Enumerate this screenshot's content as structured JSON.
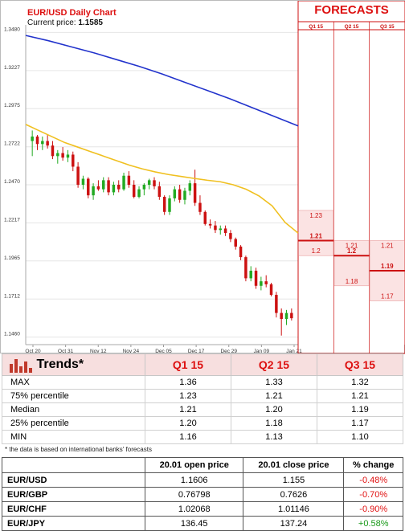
{
  "chart_data": {
    "type": "candlestick",
    "title": "EUR/USD Daily Chart",
    "current_price_label": "Current price:",
    "current_price": "1.1585",
    "y_ticks": [
      "1.3480",
      "1.3227",
      "1.2975",
      "1.2722",
      "1.2470",
      "1.2217",
      "1.1965",
      "1.1712",
      "1.1460"
    ],
    "ylim": [
      1.141,
      1.353
    ],
    "x_ticks": [
      "Oct 20",
      "Oct 31",
      "Nov 12",
      "Nov 24",
      "Dec 05",
      "Dec 17",
      "Dec 29",
      "Jan 09",
      "Jan 21"
    ],
    "candles": [
      [
        1.276,
        1.283,
        1.266,
        1.279
      ],
      [
        1.279,
        1.28,
        1.27,
        1.274
      ],
      [
        1.274,
        1.279,
        1.27,
        1.276
      ],
      [
        1.276,
        1.28,
        1.271,
        1.273
      ],
      [
        1.273,
        1.276,
        1.264,
        1.266
      ],
      [
        1.266,
        1.27,
        1.261,
        1.268
      ],
      [
        1.268,
        1.272,
        1.263,
        1.265
      ],
      [
        1.265,
        1.27,
        1.262,
        1.267
      ],
      [
        1.267,
        1.269,
        1.256,
        1.259
      ],
      [
        1.259,
        1.262,
        1.245,
        1.247
      ],
      [
        1.247,
        1.253,
        1.244,
        1.251
      ],
      [
        1.251,
        1.252,
        1.238,
        1.24
      ],
      [
        1.24,
        1.248,
        1.237,
        1.246
      ],
      [
        1.246,
        1.25,
        1.243,
        1.244
      ],
      [
        1.244,
        1.252,
        1.242,
        1.25
      ],
      [
        1.25,
        1.252,
        1.24,
        1.242
      ],
      [
        1.242,
        1.249,
        1.24,
        1.247
      ],
      [
        1.247,
        1.25,
        1.242,
        1.244
      ],
      [
        1.244,
        1.255,
        1.243,
        1.253
      ],
      [
        1.253,
        1.256,
        1.245,
        1.247
      ],
      [
        1.247,
        1.25,
        1.238,
        1.239
      ],
      [
        1.239,
        1.246,
        1.238,
        1.244
      ],
      [
        1.244,
        1.248,
        1.24,
        1.247
      ],
      [
        1.247,
        1.251,
        1.244,
        1.25
      ],
      [
        1.25,
        1.252,
        1.244,
        1.246
      ],
      [
        1.246,
        1.249,
        1.237,
        1.239
      ],
      [
        1.239,
        1.24,
        1.227,
        1.229
      ],
      [
        1.229,
        1.24,
        1.227,
        1.238
      ],
      [
        1.238,
        1.246,
        1.236,
        1.244
      ],
      [
        1.244,
        1.247,
        1.235,
        1.237
      ],
      [
        1.237,
        1.245,
        1.234,
        1.243
      ],
      [
        1.243,
        1.25,
        1.24,
        1.248
      ],
      [
        1.248,
        1.257,
        1.233,
        1.235
      ],
      [
        1.235,
        1.24,
        1.227,
        1.229
      ],
      [
        1.229,
        1.23,
        1.22,
        1.221
      ],
      [
        1.221,
        1.224,
        1.218,
        1.22
      ],
      [
        1.22,
        1.223,
        1.215,
        1.217
      ],
      [
        1.217,
        1.22,
        1.214,
        1.218
      ],
      [
        1.218,
        1.22,
        1.213,
        1.215
      ],
      [
        1.215,
        1.217,
        1.209,
        1.211
      ],
      [
        1.211,
        1.212,
        1.204,
        1.206
      ],
      [
        1.206,
        1.207,
        1.197,
        1.199
      ],
      [
        1.199,
        1.2,
        1.183,
        1.185
      ],
      [
        1.185,
        1.193,
        1.183,
        1.19
      ],
      [
        1.19,
        1.192,
        1.178,
        1.18
      ],
      [
        1.18,
        1.186,
        1.177,
        1.183
      ],
      [
        1.183,
        1.187,
        1.179,
        1.181
      ],
      [
        1.181,
        1.182,
        1.173,
        1.174
      ],
      [
        1.174,
        1.176,
        1.159,
        1.162
      ],
      [
        1.162,
        1.165,
        1.147,
        1.158
      ],
      [
        1.158,
        1.164,
        1.154,
        1.162
      ],
      [
        1.162,
        1.165,
        1.157,
        1.1585
      ]
    ],
    "ma_fast": [
      1.287,
      1.283,
      1.279,
      1.275,
      1.272,
      1.269,
      1.266,
      1.263,
      1.26,
      1.2575,
      1.2555,
      1.2538,
      1.2525,
      1.2512,
      1.25,
      1.249,
      1.247,
      1.244,
      1.2395,
      1.233,
      1.222,
      1.215
    ],
    "ma_slow": [
      1.346,
      1.3425,
      1.3385,
      1.3345,
      1.33,
      1.3255,
      1.3205,
      1.315,
      1.3095,
      1.304,
      1.298,
      1.292,
      1.286
    ],
    "forecast_columns": [
      "Q1 15",
      "Q2 15",
      "Q3 15"
    ],
    "forecasts": [
      {
        "quarter": "Q1 15",
        "p75": 1.23,
        "median": 1.21,
        "p25": 1.2,
        "p75_label": "1.23",
        "median_label": "1.21",
        "p25_label": "1.2"
      },
      {
        "quarter": "Q2 15",
        "p75": 1.21,
        "median": 1.2,
        "p25": 1.18,
        "p75_label": "1.21",
        "median_label": "1.2",
        "p25_label": "1.18"
      },
      {
        "quarter": "Q3 15",
        "p75": 1.21,
        "median": 1.19,
        "p25": 1.17,
        "p75_label": "1.21",
        "median_label": "1.19",
        "p25_label": "1.17"
      }
    ],
    "colors": {
      "up": "#22aa22",
      "down": "#cc1111",
      "ma_fast": "#f0c020",
      "ma_slow": "#2233cc",
      "forecast": "#cc1111",
      "forecast_band": "#fbe3e3"
    }
  },
  "forecasts_header": "FORECASTS",
  "trends": {
    "title": "Trends*",
    "columns": [
      "Q1 15",
      "Q2 15",
      "Q3 15"
    ],
    "rows": [
      {
        "label": "MAX",
        "values": [
          "1.36",
          "1.33",
          "1.32"
        ]
      },
      {
        "label": "75% percentile",
        "values": [
          "1.23",
          "1.21",
          "1.21"
        ]
      },
      {
        "label": "Median",
        "values": [
          "1.21",
          "1.20",
          "1.19"
        ]
      },
      {
        "label": "25% percentile",
        "values": [
          "1.20",
          "1.18",
          "1.17"
        ]
      },
      {
        "label": "MIN",
        "values": [
          "1.16",
          "1.13",
          "1.10"
        ]
      }
    ],
    "footnote": "* the data is based on international banks' forecasts"
  },
  "fx_table": {
    "headers": [
      "20.01 open price",
      "20.01 close price",
      "% change"
    ],
    "rows": [
      {
        "pair": "EUR/USD",
        "open": "1.1606",
        "close": "1.155",
        "change": "-0.48%",
        "dir": "neg"
      },
      {
        "pair": "EUR/GBP",
        "open": "0.76798",
        "close": "0.7626",
        "change": "-0.70%",
        "dir": "neg"
      },
      {
        "pair": "EUR/CHF",
        "open": "1.02068",
        "close": "1.01146",
        "change": "-0.90%",
        "dir": "neg"
      },
      {
        "pair": "EUR/JPY",
        "open": "136.45",
        "close": "137.24",
        "change": "+0.58%",
        "dir": "pos"
      }
    ]
  }
}
